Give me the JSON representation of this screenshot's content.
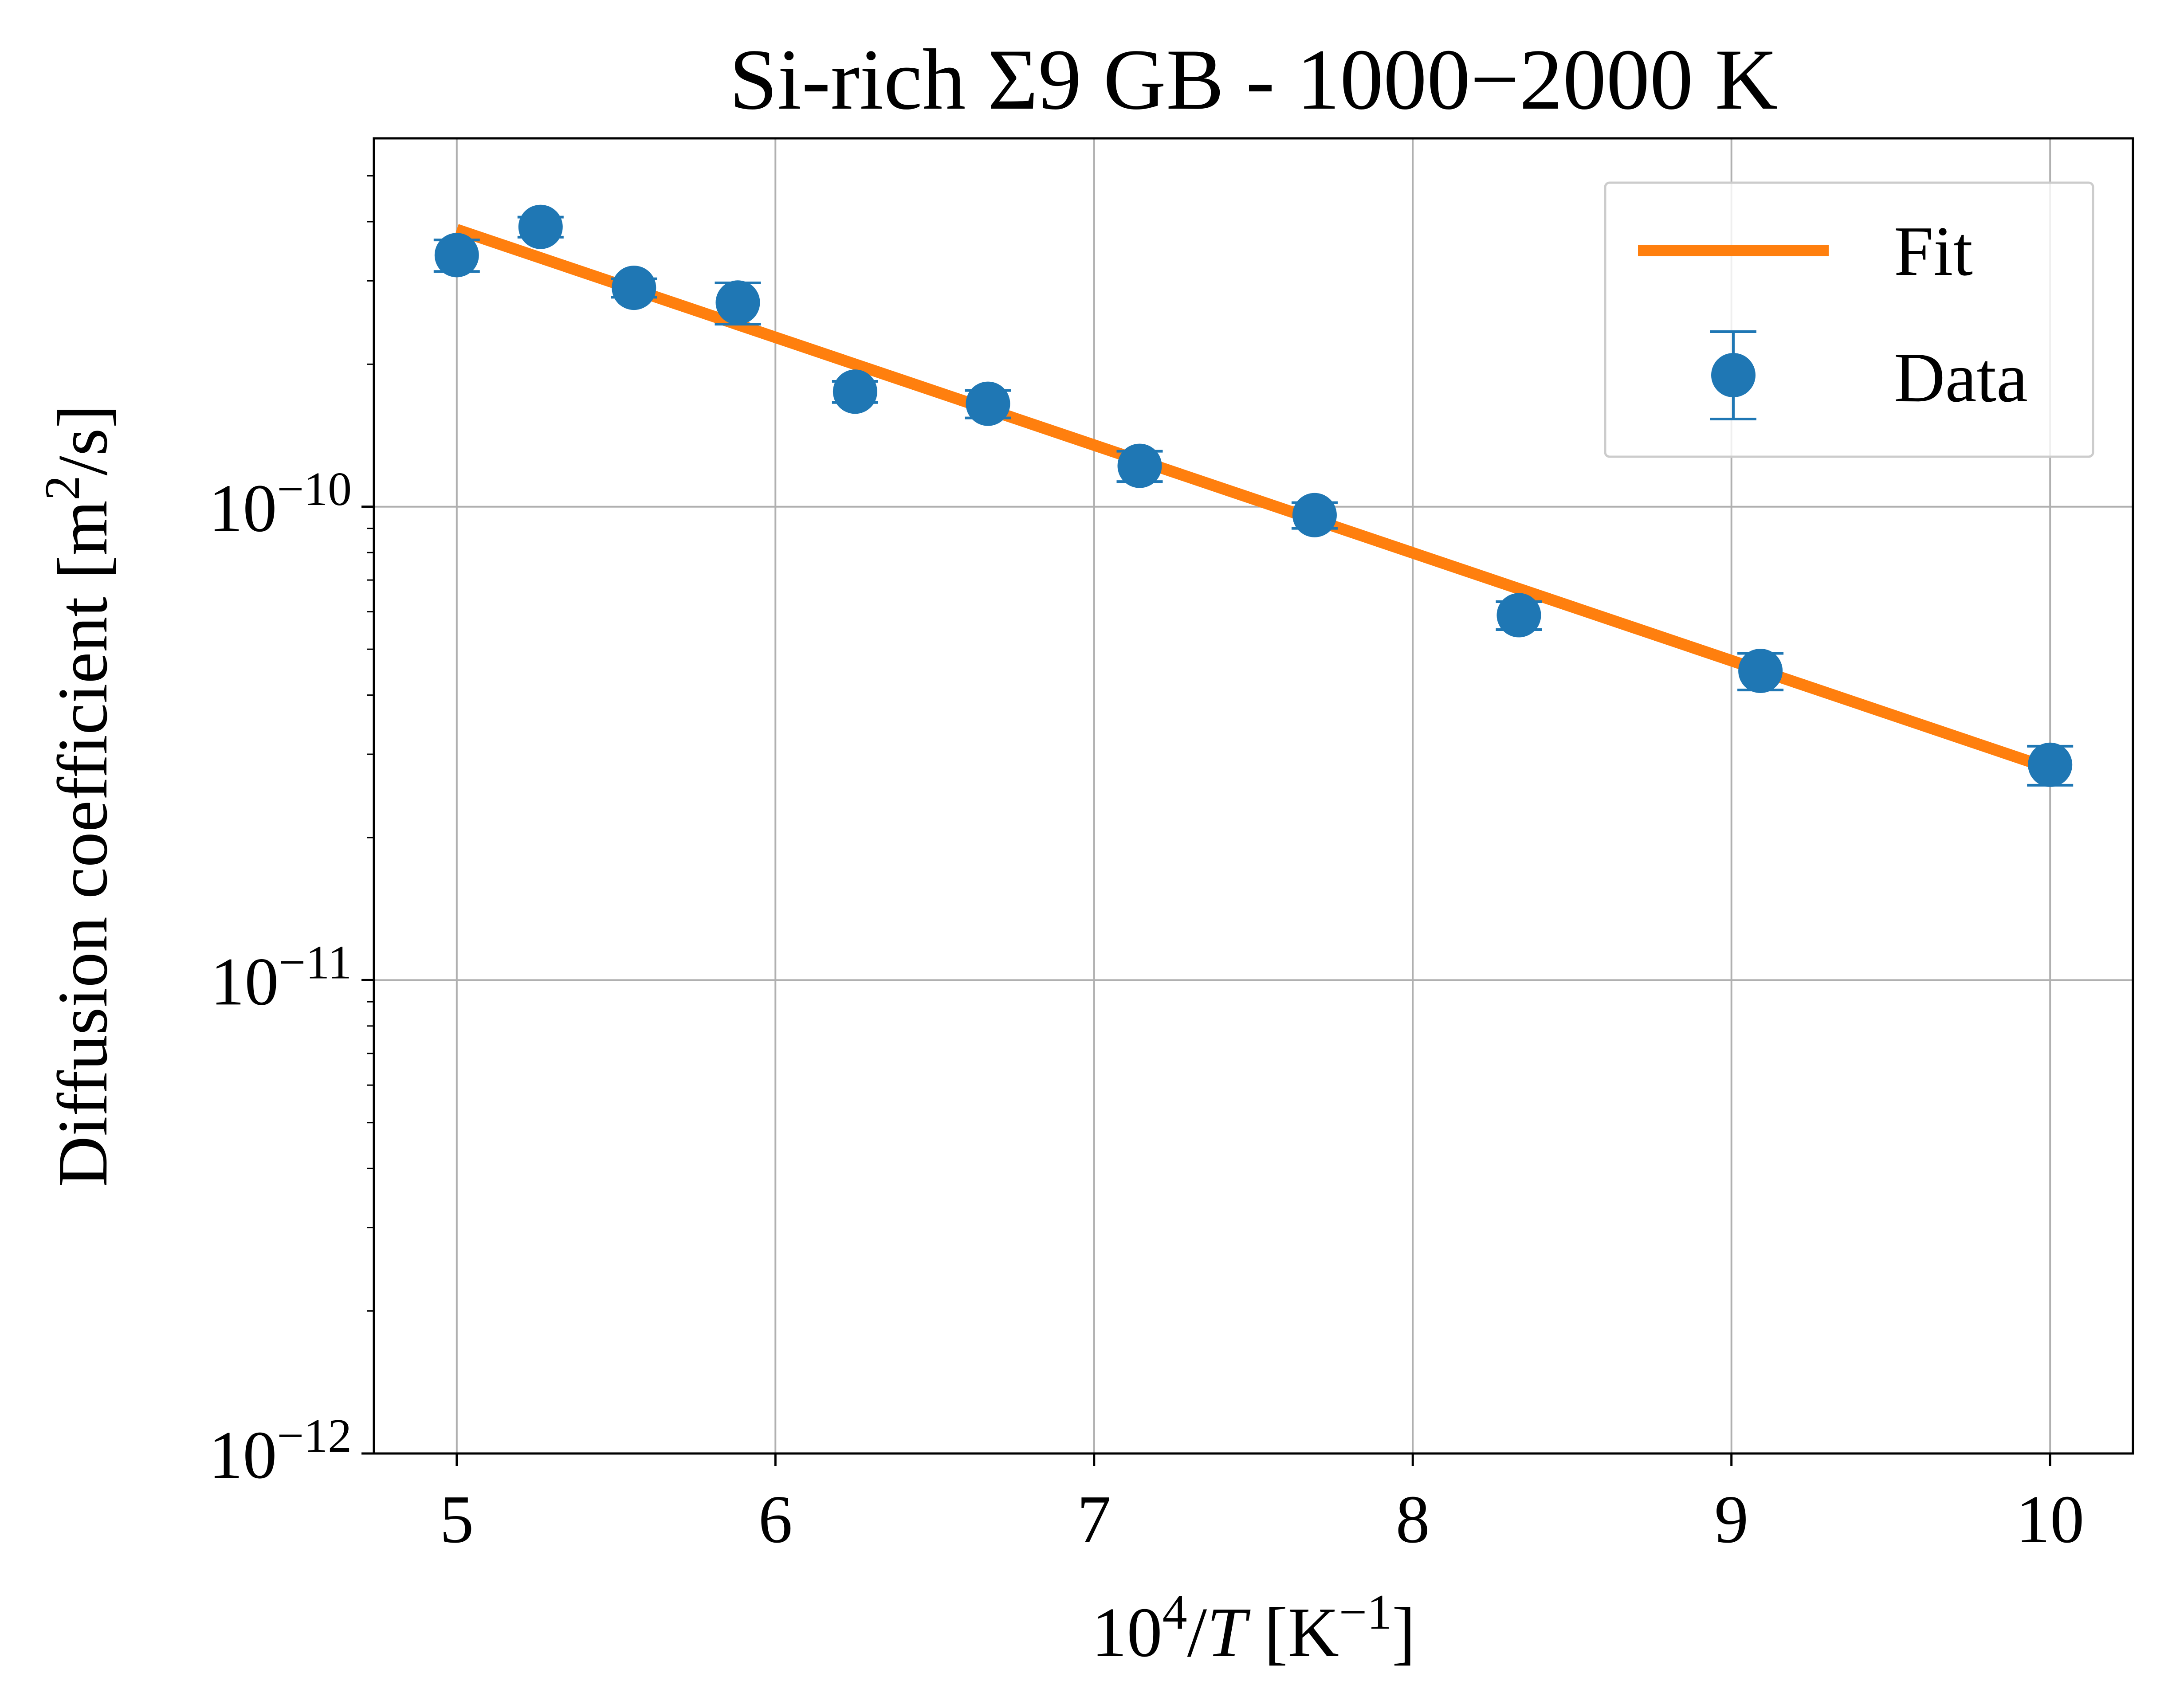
{
  "chart_data": {
    "type": "scatter",
    "title": "Si-rich Σ9 GB - 1000−2000 K",
    "xlabel": "10^4/T [K^-1]",
    "ylabel": "Diffusion coefficient [m^2/s]",
    "xlim": [
      4.74,
      10.26
    ],
    "ylim": [
      1e-12,
      6e-10
    ],
    "yscale": "log",
    "x_ticks": [
      5,
      6,
      7,
      8,
      9,
      10
    ],
    "x_tick_labels": [
      "5",
      "6",
      "7",
      "8",
      "9",
      "10"
    ],
    "y_major_ticks": [
      1e-12,
      1e-11,
      1e-10
    ],
    "y_tick_labels": [
      {
        "base": "10",
        "exp": "−12"
      },
      {
        "base": "10",
        "exp": "−11"
      },
      {
        "base": "10",
        "exp": "−10"
      }
    ],
    "grid": true,
    "legend_position": "top-right",
    "series": [
      {
        "name": "Fit",
        "kind": "line",
        "color": "#ff7f0e",
        "x": [
          5.0,
          10.0
        ],
        "y": [
          3.85e-10,
          2.8e-11
        ]
      },
      {
        "name": "Data",
        "kind": "errorbar",
        "color": "#1f77b4",
        "x": [
          5.0,
          5.263,
          5.556,
          5.882,
          6.25,
          6.667,
          7.143,
          7.692,
          8.333,
          9.091,
          10.0
        ],
        "y": [
          3.4e-10,
          3.9e-10,
          2.9e-10,
          2.7e-10,
          1.75e-10,
          1.65e-10,
          1.22e-10,
          9.6e-11,
          5.9e-11,
          4.5e-11,
          2.85e-11
        ],
        "yerr": [
          2.6e-11,
          1.9e-11,
          1.3e-11,
          2.7e-11,
          9e-12,
          1.1e-11,
          9e-12,
          6e-12,
          4e-12,
          4e-12,
          2.7e-12
        ]
      }
    ]
  }
}
